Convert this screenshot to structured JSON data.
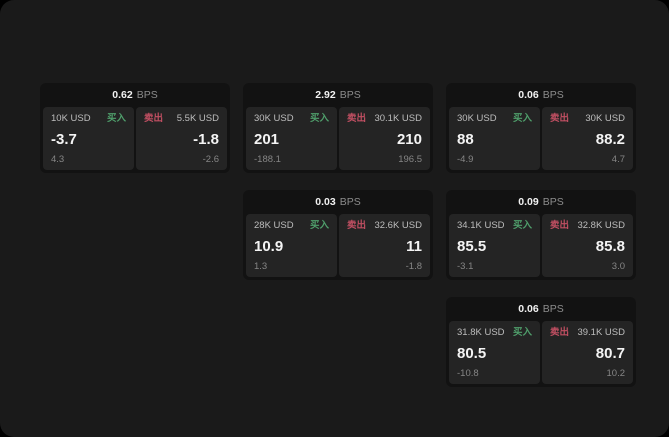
{
  "labels": {
    "buy": "买入",
    "sell": "卖出",
    "bps_unit": "BPS"
  },
  "colors": {
    "page_background": "#1a1a1a",
    "card_background": "#121212",
    "panel_background": "#242424",
    "buy_green": "#4f9e6b",
    "sell_red": "#c04f62",
    "primary_text": "#f4f4f4",
    "muted_text": "#868686"
  },
  "cards": [
    {
      "bps": "0.62",
      "buy": {
        "size": "10K USD",
        "price": "-3.7",
        "delta": "4.3"
      },
      "sell": {
        "size": "5.5K USD",
        "price": "-1.8",
        "delta": "-2.6"
      }
    },
    {
      "bps": "2.92",
      "buy": {
        "size": "30K USD",
        "price": "201",
        "delta": "-188.1"
      },
      "sell": {
        "size": "30.1K USD",
        "price": "210",
        "delta": "196.5"
      }
    },
    {
      "bps": "0.06",
      "buy": {
        "size": "30K USD",
        "price": "88",
        "delta": "-4.9"
      },
      "sell": {
        "size": "30K USD",
        "price": "88.2",
        "delta": "4.7"
      }
    },
    {
      "bps": "0.03",
      "buy": {
        "size": "28K USD",
        "price": "10.9",
        "delta": "1.3"
      },
      "sell": {
        "size": "32.6K USD",
        "price": "11",
        "delta": "-1.8"
      }
    },
    {
      "bps": "0.09",
      "buy": {
        "size": "34.1K USD",
        "price": "85.5",
        "delta": "-3.1"
      },
      "sell": {
        "size": "32.8K USD",
        "price": "85.8",
        "delta": "3.0"
      }
    },
    {
      "bps": "0.06",
      "buy": {
        "size": "31.8K USD",
        "price": "80.5",
        "delta": "-10.8"
      },
      "sell": {
        "size": "39.1K USD",
        "price": "80.7",
        "delta": "10.2"
      }
    }
  ]
}
